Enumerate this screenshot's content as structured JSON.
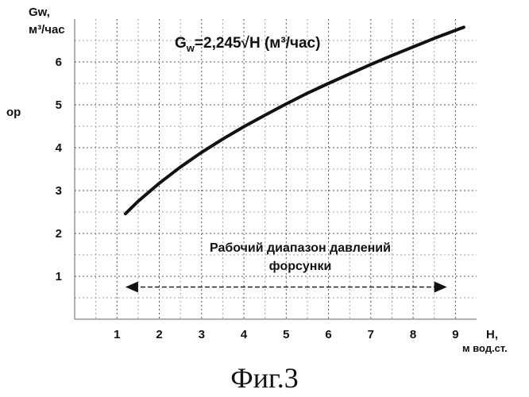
{
  "chart_data": {
    "type": "line",
    "formula": "G",
    "formula_sub": "w",
    "formula_rest": "=2,245√H  (м³/час)",
    "ylabel_line1": "Gw,",
    "ylabel_line2": "м³/час",
    "xlabel_line1": "H,",
    "xlabel_line2": "м вод.ст.",
    "side_mark": "ор",
    "range_text_line1": "Рабочий диапазон давлений",
    "range_text_line2": "форсунки",
    "caption": "Фиг.3",
    "xlim": [
      0,
      9.5
    ],
    "ylim": [
      0,
      7
    ],
    "xticks": [
      1,
      2,
      3,
      4,
      5,
      6,
      7,
      8,
      9
    ],
    "yticks": [
      1,
      2,
      3,
      4,
      5,
      6
    ],
    "grid": true,
    "range": [
      1.2,
      8.8
    ],
    "series": [
      {
        "x": [
          1.2,
          1.5,
          2,
          2.5,
          3,
          3.5,
          4,
          4.5,
          5,
          5.5,
          6,
          6.5,
          7,
          7.5,
          8,
          8.5,
          9.2
        ],
        "y": [
          2.46,
          2.75,
          3.17,
          3.55,
          3.89,
          4.2,
          4.49,
          4.76,
          5.02,
          5.27,
          5.5,
          5.72,
          5.94,
          6.15,
          6.35,
          6.55,
          6.81
        ]
      }
    ]
  }
}
